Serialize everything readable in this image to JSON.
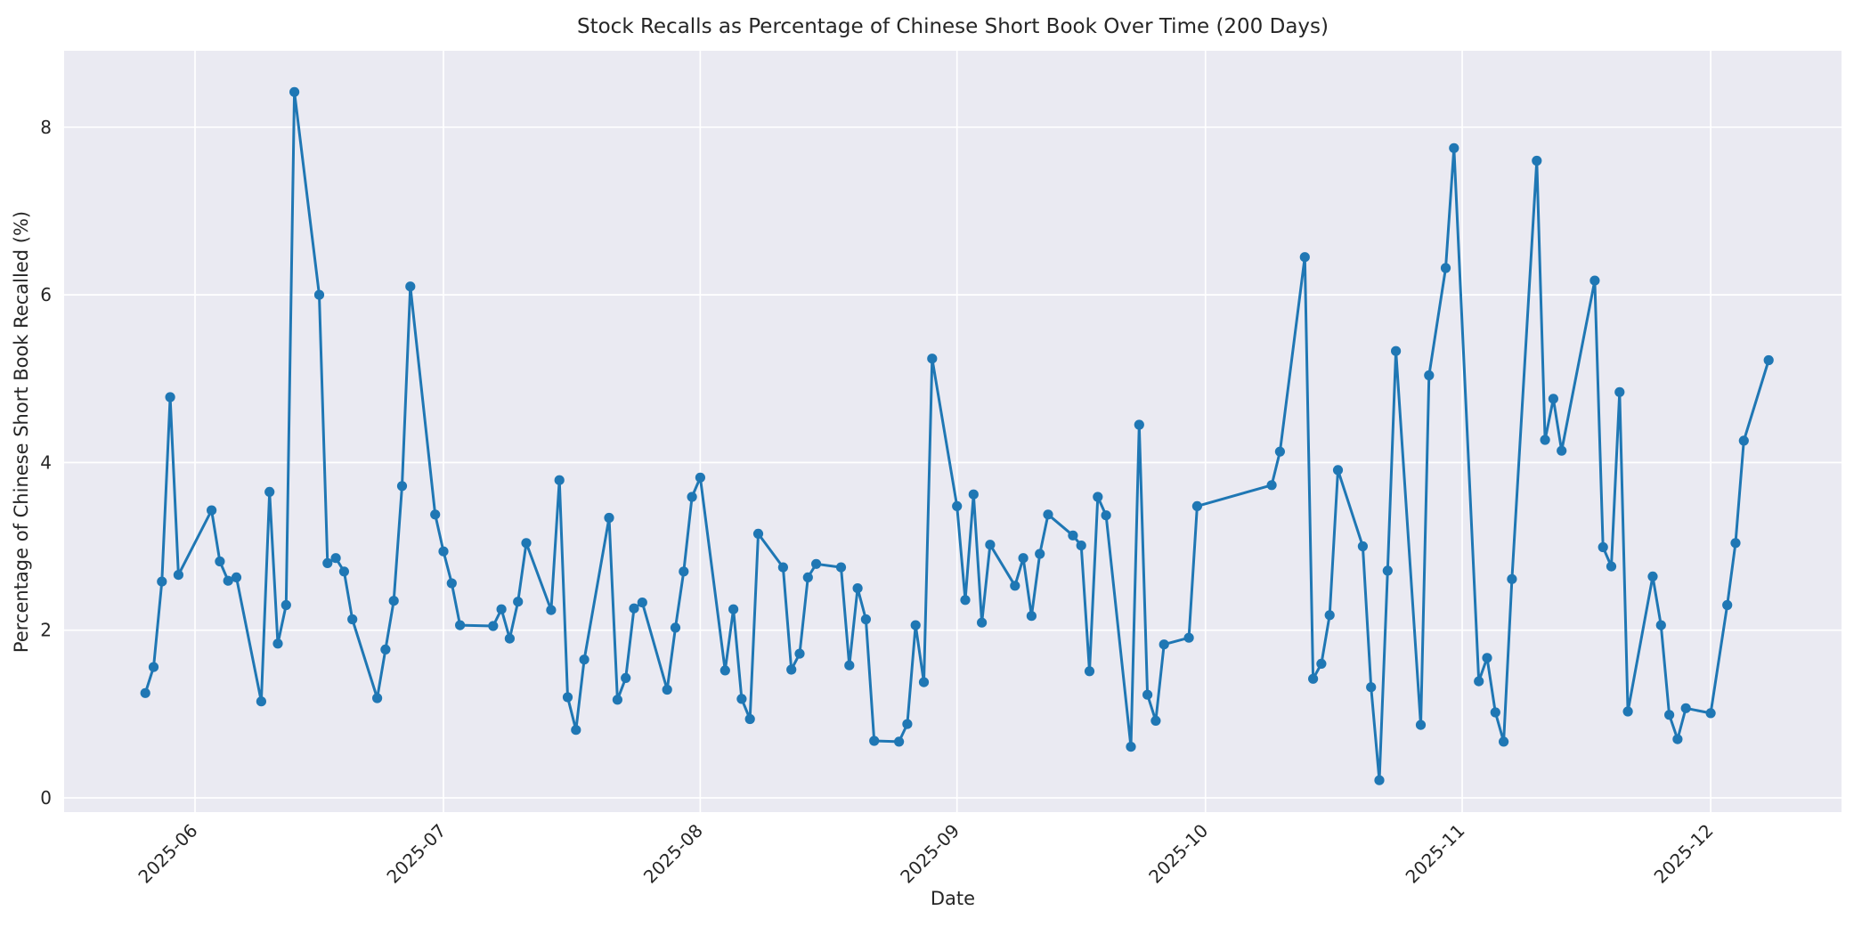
{
  "figure": {
    "kind": "matplotlib-seaborn line chart screenshot"
  },
  "chart_data": {
    "type": "line",
    "title": "Stock Recalls as Percentage of Chinese Short Book Over Time (200 Days)",
    "xlabel": "Date",
    "ylabel": "Percentage of Chinese Short Book Recalled (%)",
    "series_name": "recall_pct_of_short_book",
    "x": [
      "2025-05-26",
      "2025-05-27",
      "2025-05-28",
      "2025-05-29",
      "2025-05-30",
      "2025-06-03",
      "2025-06-04",
      "2025-06-05",
      "2025-06-06",
      "2025-06-09",
      "2025-06-10",
      "2025-06-11",
      "2025-06-12",
      "2025-06-13",
      "2025-06-16",
      "2025-06-17",
      "2025-06-18",
      "2025-06-19",
      "2025-06-20",
      "2025-06-23",
      "2025-06-24",
      "2025-06-25",
      "2025-06-26",
      "2025-06-27",
      "2025-06-30",
      "2025-07-01",
      "2025-07-02",
      "2025-07-03",
      "2025-07-07",
      "2025-07-08",
      "2025-07-09",
      "2025-07-10",
      "2025-07-11",
      "2025-07-14",
      "2025-07-15",
      "2025-07-16",
      "2025-07-17",
      "2025-07-18",
      "2025-07-21",
      "2025-07-22",
      "2025-07-23",
      "2025-07-24",
      "2025-07-25",
      "2025-07-28",
      "2025-07-29",
      "2025-07-30",
      "2025-07-31",
      "2025-08-01",
      "2025-08-04",
      "2025-08-05",
      "2025-08-06",
      "2025-08-07",
      "2025-08-08",
      "2025-08-11",
      "2025-08-12",
      "2025-08-13",
      "2025-08-14",
      "2025-08-15",
      "2025-08-18",
      "2025-08-19",
      "2025-08-20",
      "2025-08-21",
      "2025-08-22",
      "2025-08-25",
      "2025-08-26",
      "2025-08-27",
      "2025-08-28",
      "2025-08-29",
      "2025-09-01",
      "2025-09-02",
      "2025-09-03",
      "2025-09-04",
      "2025-09-05",
      "2025-09-08",
      "2025-09-09",
      "2025-09-10",
      "2025-09-11",
      "2025-09-12",
      "2025-09-15",
      "2025-09-16",
      "2025-09-17",
      "2025-09-18",
      "2025-09-19",
      "2025-09-22",
      "2025-09-23",
      "2025-09-24",
      "2025-09-25",
      "2025-09-26",
      "2025-09-29",
      "2025-09-30",
      "2025-10-09",
      "2025-10-10",
      "2025-10-13",
      "2025-10-14",
      "2025-10-15",
      "2025-10-16",
      "2025-10-17",
      "2025-10-20",
      "2025-10-21",
      "2025-10-22",
      "2025-10-23",
      "2025-10-24",
      "2025-10-27",
      "2025-10-28",
      "2025-10-30",
      "2025-10-31",
      "2025-11-03",
      "2025-11-04",
      "2025-11-05",
      "2025-11-06",
      "2025-11-07",
      "2025-11-10",
      "2025-11-11",
      "2025-11-12",
      "2025-11-13",
      "2025-11-17",
      "2025-11-18",
      "2025-11-19",
      "2025-11-20",
      "2025-11-21",
      "2025-11-24",
      "2025-11-25",
      "2025-11-26",
      "2025-11-27",
      "2025-11-28",
      "2025-12-01",
      "2025-12-03",
      "2025-12-04",
      "2025-12-05",
      "2025-12-08"
    ],
    "y": [
      1.25,
      1.56,
      2.58,
      4.78,
      2.66,
      3.43,
      2.82,
      2.59,
      2.63,
      1.15,
      3.65,
      1.84,
      2.3,
      8.42,
      6.0,
      2.8,
      2.86,
      2.7,
      2.13,
      1.19,
      1.77,
      2.35,
      3.72,
      6.1,
      3.38,
      2.94,
      2.56,
      2.06,
      2.05,
      2.25,
      1.9,
      2.34,
      3.04,
      2.24,
      3.79,
      1.2,
      0.81,
      1.65,
      3.34,
      1.17,
      1.43,
      2.26,
      2.33,
      1.29,
      2.03,
      2.7,
      3.59,
      3.82,
      1.52,
      2.25,
      1.18,
      0.94,
      3.15,
      2.75,
      1.53,
      1.72,
      2.63,
      2.79,
      2.75,
      1.58,
      2.5,
      2.13,
      0.68,
      0.67,
      0.88,
      2.06,
      1.38,
      5.24,
      3.48,
      2.36,
      3.62,
      2.09,
      3.02,
      2.53,
      2.86,
      2.17,
      2.91,
      3.38,
      3.13,
      3.01,
      1.51,
      3.59,
      3.37,
      0.61,
      4.45,
      1.23,
      0.92,
      1.83,
      1.91,
      3.48,
      3.73,
      4.13,
      6.45,
      1.42,
      1.6,
      2.18,
      3.91,
      3.0,
      1.32,
      0.21,
      2.71,
      5.33,
      0.87,
      5.04,
      6.32,
      7.75,
      1.39,
      1.67,
      1.02,
      0.67,
      2.61,
      7.6,
      4.27,
      4.76,
      4.14,
      6.17,
      2.99,
      2.76,
      4.84,
      1.03,
      2.64,
      2.06,
      0.99,
      0.7,
      1.07,
      1.01,
      2.3,
      3.04,
      4.26,
      5.22
    ],
    "x_tick_labels": [
      "2025-06",
      "2025-07",
      "2025-08",
      "2025-09",
      "2025-10",
      "2025-11",
      "2025-12"
    ],
    "y_tick_labels": [
      "0",
      "2",
      "4",
      "6",
      "8"
    ],
    "y_ticks": [
      0,
      2,
      4,
      6,
      8
    ],
    "ylim": [
      -0.17,
      8.91
    ],
    "xlim": [
      "2025-05-16",
      "2025-12-16"
    ],
    "grid": true,
    "legend_position": "none",
    "style": {
      "line_color": "#1f77b4",
      "marker": "o",
      "marker_color": "#1f77b4",
      "plot_background_color": "#eaeaf2",
      "grid_color": "#ffffff",
      "figure_background_color": "#ffffff",
      "text_color": "#262626"
    }
  }
}
